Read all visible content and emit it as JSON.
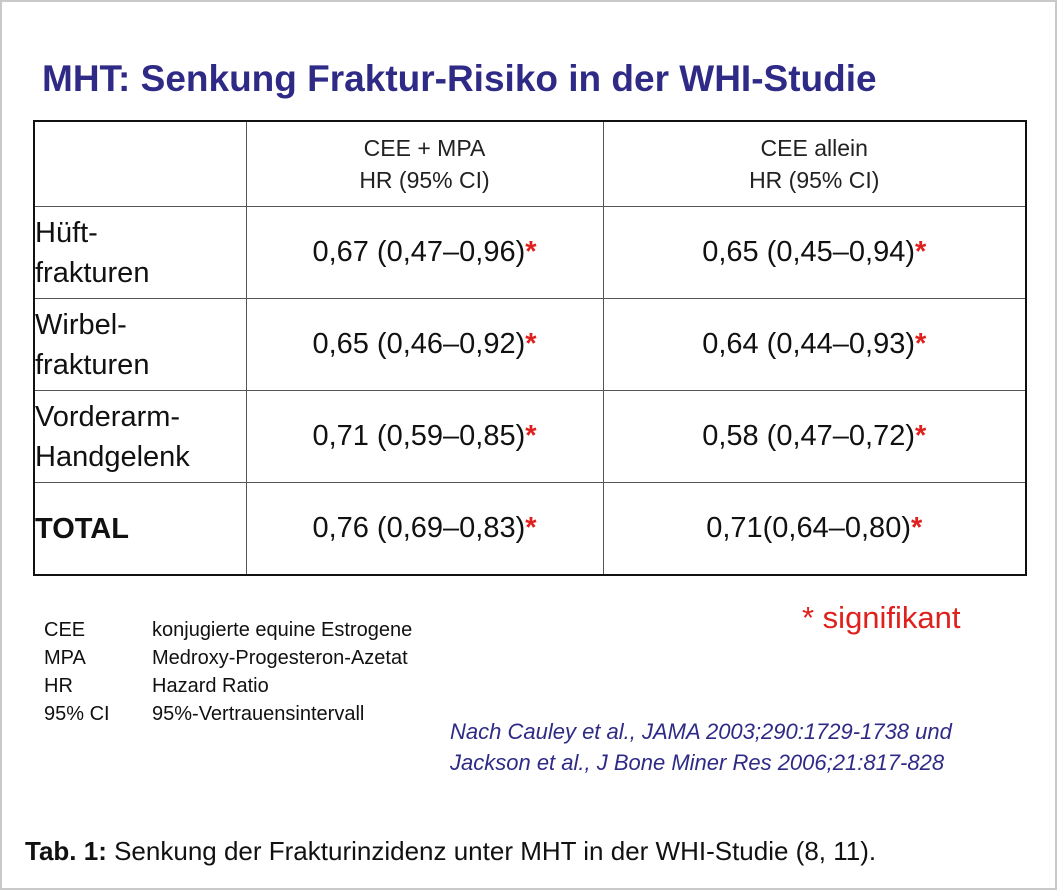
{
  "title": "MHT: Senkung Fraktur-Risiko in der WHI-Studie",
  "table": {
    "columns": [
      {
        "line1": "CEE + MPA",
        "line2": "HR (95% CI)"
      },
      {
        "line1": "CEE allein",
        "line2": "HR (95% CI)"
      }
    ],
    "rows": [
      {
        "label1": "Hüft-",
        "label2": "frakturen",
        "v1": "0,67 (0,47–0,96)",
        "v2": "0,65 (0,45–0,94)"
      },
      {
        "label1": "Wirbel-",
        "label2": "frakturen",
        "v1": "0,65 (0,46–0,92)",
        "v2": "0,64 (0,44–0,93)"
      },
      {
        "label1": "Vorderarm-",
        "label2": "Handgelenk",
        "v1": "0,71 (0,59–0,85)",
        "v2": "0,58 (0,47–0,72)"
      }
    ],
    "total": {
      "label": "TOTAL",
      "v1": "0,76 (0,69–0,83)",
      "v2": "0,71(0,64–0,80)"
    },
    "significance_marker": "*"
  },
  "abbreviations": [
    {
      "abbr": "CEE",
      "meaning": "konjugierte equine Estrogene"
    },
    {
      "abbr": "MPA",
      "meaning": "Medroxy-Progesteron-Azetat"
    },
    {
      "abbr": "HR",
      "meaning": "Hazard Ratio"
    },
    {
      "abbr": "95% CI",
      "meaning": "95%-Vertrauensintervall"
    }
  ],
  "significance_legend": "* signifikant",
  "source": {
    "line1": "Nach Cauley et al., JAMA 2003;290:1729-1738 und",
    "line2": "Jackson et al., J Bone Miner Res 2006;21:817-828"
  },
  "caption": {
    "label": "Tab. 1:",
    "text": "Senkung der Frakturinzidenz unter MHT in der WHI-Studie (8, 11)."
  },
  "colors": {
    "title": "#2e2a86",
    "significance": "#e0201c",
    "source": "#2e2a86"
  }
}
